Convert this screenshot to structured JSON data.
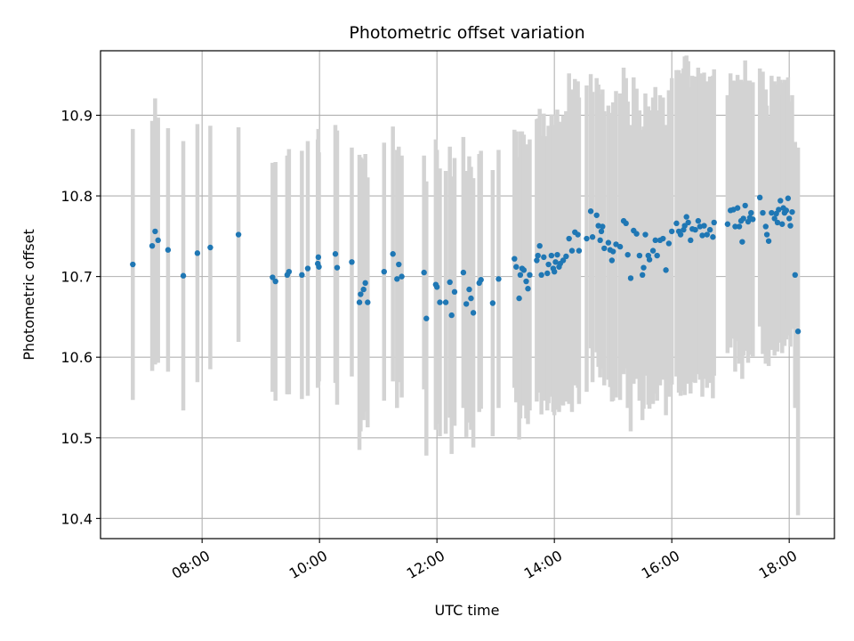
{
  "chart_data": {
    "type": "scatter",
    "title": "Photometric offset variation",
    "xlabel": "UTC time",
    "ylabel": "Photometric offset",
    "x_unit": "hours UTC",
    "xlim": [
      6.27,
      18.77
    ],
    "ylim": [
      10.375,
      10.98
    ],
    "grid": true,
    "x_ticks": [
      {
        "value": 8,
        "label": "08:00"
      },
      {
        "value": 10,
        "label": "10:00"
      },
      {
        "value": 12,
        "label": "12:00"
      },
      {
        "value": 14,
        "label": "14:00"
      },
      {
        "value": 16,
        "label": "16:00"
      },
      {
        "value": 18,
        "label": "18:00"
      }
    ],
    "y_ticks": [
      {
        "value": 10.4,
        "label": "10.4"
      },
      {
        "value": 10.5,
        "label": "10.5"
      },
      {
        "value": 10.6,
        "label": "10.6"
      },
      {
        "value": 10.7,
        "label": "10.7"
      },
      {
        "value": 10.8,
        "label": "10.8"
      },
      {
        "value": 10.9,
        "label": "10.9"
      }
    ],
    "point_color": "#1f77b4",
    "errorbar_color": "#d3d3d3",
    "series": [
      {
        "columns": [
          "x",
          "y",
          "yerr"
        ],
        "points": [
          [
            6.82,
            10.715,
            0.168
          ],
          [
            7.15,
            10.738,
            0.155
          ],
          [
            7.2,
            10.756,
            0.165
          ],
          [
            7.25,
            10.745,
            0.152
          ],
          [
            7.42,
            10.733,
            0.151
          ],
          [
            7.68,
            10.701,
            0.167
          ],
          [
            7.92,
            10.729,
            0.16
          ],
          [
            8.14,
            10.736,
            0.151
          ],
          [
            8.62,
            10.752,
            0.133
          ],
          [
            9.2,
            10.699,
            0.142
          ],
          [
            9.25,
            10.694,
            0.148
          ],
          [
            9.45,
            10.702,
            0.148
          ],
          [
            9.48,
            10.706,
            0.152
          ],
          [
            9.7,
            10.702,
            0.154
          ],
          [
            9.8,
            10.71,
            0.158
          ],
          [
            9.97,
            10.716,
            0.154
          ],
          [
            9.98,
            10.724,
            0.159
          ],
          [
            9.99,
            10.712,
            0.142
          ],
          [
            10.27,
            10.728,
            0.16
          ],
          [
            10.3,
            10.711,
            0.17
          ],
          [
            10.55,
            10.718,
            0.142
          ],
          [
            10.68,
            10.668,
            0.183
          ],
          [
            10.7,
            10.678,
            0.17
          ],
          [
            10.75,
            10.684,
            0.162
          ],
          [
            10.78,
            10.692,
            0.16
          ],
          [
            10.82,
            10.668,
            0.155
          ],
          [
            11.1,
            10.706,
            0.16
          ],
          [
            11.25,
            10.728,
            0.158
          ],
          [
            11.32,
            10.697,
            0.16
          ],
          [
            11.35,
            10.715,
            0.146
          ],
          [
            11.4,
            10.7,
            0.15
          ],
          [
            11.78,
            10.705,
            0.145
          ],
          [
            11.82,
            10.648,
            0.17
          ],
          [
            11.98,
            10.69,
            0.18
          ],
          [
            12.0,
            10.687,
            0.17
          ],
          [
            12.05,
            10.668,
            0.166
          ],
          [
            12.15,
            10.668,
            0.163
          ],
          [
            12.22,
            10.693,
            0.168
          ],
          [
            12.25,
            10.652,
            0.172
          ],
          [
            12.3,
            10.681,
            0.166
          ],
          [
            12.45,
            10.705,
            0.168
          ],
          [
            12.5,
            10.666,
            0.165
          ],
          [
            12.55,
            10.684,
            0.165
          ],
          [
            12.58,
            10.673,
            0.163
          ],
          [
            12.62,
            10.655,
            0.167
          ],
          [
            12.72,
            10.692,
            0.16
          ],
          [
            12.75,
            10.696,
            0.16
          ],
          [
            12.95,
            10.667,
            0.165
          ],
          [
            13.05,
            10.697,
            0.16
          ],
          [
            13.32,
            10.722,
            0.16
          ],
          [
            13.35,
            10.712,
            0.168
          ],
          [
            13.4,
            10.673,
            0.175
          ],
          [
            13.42,
            10.702,
            0.178
          ],
          [
            13.45,
            10.71,
            0.17
          ],
          [
            13.48,
            10.708,
            0.168
          ],
          [
            13.52,
            10.694,
            0.17
          ],
          [
            13.55,
            10.685,
            0.168
          ],
          [
            13.58,
            10.702,
            0.168
          ],
          [
            13.7,
            10.72,
            0.175
          ],
          [
            13.72,
            10.726,
            0.17
          ],
          [
            13.75,
            10.738,
            0.17
          ],
          [
            13.78,
            10.702,
            0.173
          ],
          [
            13.82,
            10.724,
            0.178
          ],
          [
            13.88,
            10.704,
            0.17
          ],
          [
            13.9,
            10.715,
            0.172
          ],
          [
            13.95,
            10.726,
            0.175
          ],
          [
            13.98,
            10.71,
            0.178
          ],
          [
            14.0,
            10.706,
            0.178
          ],
          [
            14.02,
            10.718,
            0.183
          ],
          [
            14.05,
            10.727,
            0.18
          ],
          [
            14.08,
            10.712,
            0.18
          ],
          [
            14.1,
            10.716,
            0.175
          ],
          [
            14.15,
            10.72,
            0.18
          ],
          [
            14.2,
            10.725,
            0.18
          ],
          [
            14.25,
            10.747,
            0.205
          ],
          [
            14.3,
            10.732,
            0.2
          ],
          [
            14.35,
            10.755,
            0.19
          ],
          [
            14.4,
            10.752,
            0.19
          ],
          [
            14.42,
            10.732,
            0.19
          ],
          [
            14.55,
            10.747,
            0.19
          ],
          [
            14.62,
            10.781,
            0.17
          ],
          [
            14.65,
            10.749,
            0.18
          ],
          [
            14.72,
            10.776,
            0.17
          ],
          [
            14.75,
            10.763,
            0.175
          ],
          [
            14.78,
            10.745,
            0.17
          ],
          [
            14.8,
            10.756,
            0.17
          ],
          [
            14.82,
            10.762,
            0.17
          ],
          [
            14.85,
            10.735,
            0.17
          ],
          [
            14.92,
            10.742,
            0.17
          ],
          [
            14.95,
            10.733,
            0.17
          ],
          [
            14.98,
            10.72,
            0.175
          ],
          [
            15.0,
            10.731,
            0.185
          ],
          [
            15.05,
            10.74,
            0.19
          ],
          [
            15.12,
            10.737,
            0.19
          ],
          [
            15.18,
            10.769,
            0.19
          ],
          [
            15.22,
            10.766,
            0.18
          ],
          [
            15.25,
            10.727,
            0.19
          ],
          [
            15.3,
            10.698,
            0.19
          ],
          [
            15.35,
            10.757,
            0.19
          ],
          [
            15.4,
            10.753,
            0.18
          ],
          [
            15.45,
            10.726,
            0.18
          ],
          [
            15.5,
            10.702,
            0.18
          ],
          [
            15.52,
            10.711,
            0.175
          ],
          [
            15.55,
            10.752,
            0.175
          ],
          [
            15.6,
            10.726,
            0.185
          ],
          [
            15.62,
            10.721,
            0.185
          ],
          [
            15.68,
            10.732,
            0.19
          ],
          [
            15.72,
            10.745,
            0.19
          ],
          [
            15.75,
            10.726,
            0.18
          ],
          [
            15.8,
            10.745,
            0.18
          ],
          [
            15.85,
            10.747,
            0.175
          ],
          [
            15.9,
            10.708,
            0.18
          ],
          [
            15.95,
            10.741,
            0.19
          ],
          [
            16.0,
            10.756,
            0.19
          ],
          [
            16.08,
            10.766,
            0.19
          ],
          [
            16.12,
            10.756,
            0.2
          ],
          [
            16.15,
            10.752,
            0.2
          ],
          [
            16.2,
            10.758,
            0.2
          ],
          [
            16.22,
            10.763,
            0.21
          ],
          [
            16.25,
            10.774,
            0.2
          ],
          [
            16.28,
            10.767,
            0.2
          ],
          [
            16.32,
            10.745,
            0.19
          ],
          [
            16.35,
            10.759,
            0.19
          ],
          [
            16.4,
            10.758,
            0.19
          ],
          [
            16.45,
            10.769,
            0.19
          ],
          [
            16.48,
            10.762,
            0.19
          ],
          [
            16.52,
            10.751,
            0.2
          ],
          [
            16.55,
            10.763,
            0.19
          ],
          [
            16.6,
            10.752,
            0.19
          ],
          [
            16.65,
            10.758,
            0.19
          ],
          [
            16.7,
            10.749,
            0.2
          ],
          [
            16.72,
            10.767,
            0.19
          ],
          [
            16.95,
            10.765,
            0.16
          ],
          [
            17.0,
            10.782,
            0.17
          ],
          [
            17.05,
            10.783,
            0.16
          ],
          [
            17.08,
            10.762,
            0.18
          ],
          [
            17.12,
            10.785,
            0.165
          ],
          [
            17.15,
            10.762,
            0.17
          ],
          [
            17.18,
            10.769,
            0.175
          ],
          [
            17.2,
            10.743,
            0.17
          ],
          [
            17.22,
            10.772,
            0.17
          ],
          [
            17.25,
            10.788,
            0.18
          ],
          [
            17.3,
            10.768,
            0.175
          ],
          [
            17.33,
            10.773,
            0.17
          ],
          [
            17.35,
            10.779,
            0.16
          ],
          [
            17.38,
            10.771,
            0.17
          ],
          [
            17.5,
            10.798,
            0.16
          ],
          [
            17.55,
            10.779,
            0.175
          ],
          [
            17.6,
            10.762,
            0.17
          ],
          [
            17.62,
            10.752,
            0.16
          ],
          [
            17.65,
            10.744,
            0.155
          ],
          [
            17.7,
            10.779,
            0.17
          ],
          [
            17.75,
            10.772,
            0.17
          ],
          [
            17.78,
            10.778,
            0.16
          ],
          [
            17.8,
            10.767,
            0.16
          ],
          [
            17.82,
            10.783,
            0.165
          ],
          [
            17.85,
            10.794,
            0.15
          ],
          [
            17.88,
            10.765,
            0.16
          ],
          [
            17.9,
            10.785,
            0.155
          ],
          [
            17.92,
            10.779,
            0.165
          ],
          [
            17.95,
            10.782,
            0.16
          ],
          [
            17.98,
            10.797,
            0.15
          ],
          [
            18.0,
            10.772,
            0.145
          ],
          [
            18.02,
            10.763,
            0.15
          ],
          [
            18.05,
            10.78,
            0.145
          ],
          [
            18.1,
            10.702,
            0.165
          ],
          [
            18.15,
            10.632,
            0.228
          ]
        ]
      }
    ]
  }
}
